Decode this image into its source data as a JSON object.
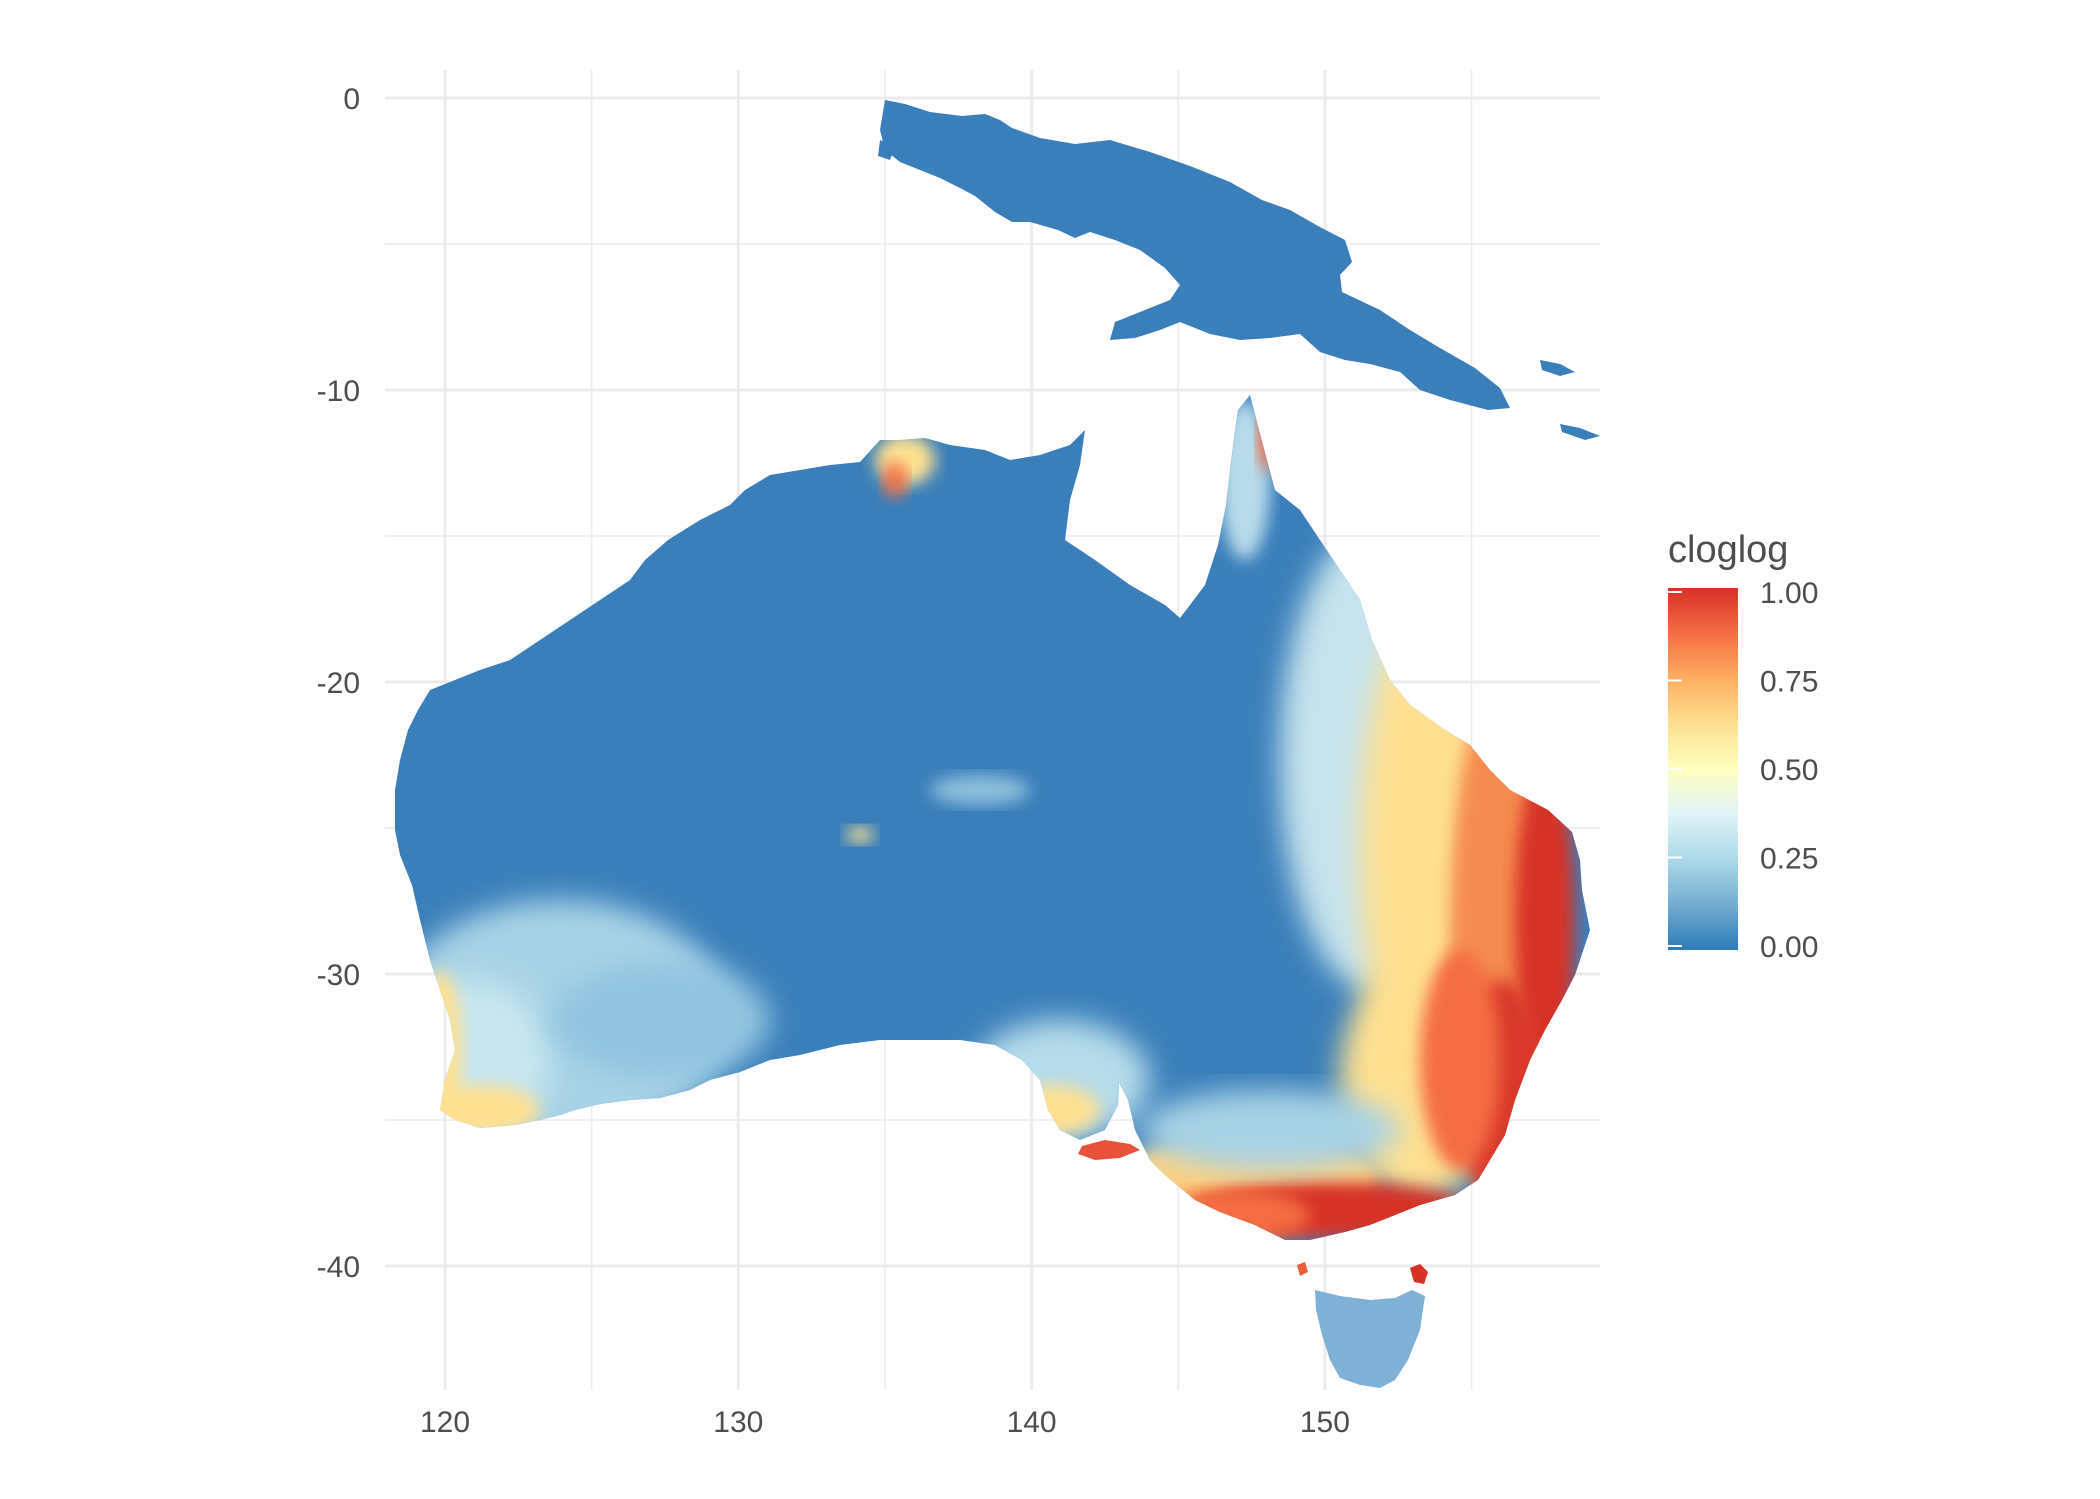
{
  "chart_data": {
    "type": "raster-map",
    "x_ticks": [
      "120",
      "130",
      "140",
      "150"
    ],
    "y_ticks": [
      "0",
      "-10",
      "-20",
      "-30",
      "-40"
    ],
    "xlim": [
      113,
      154.5
    ],
    "ylim": [
      -44,
      0.5
    ],
    "x_tick_values": [
      120,
      130,
      140,
      150
    ],
    "y_tick_values": [
      0,
      -10,
      -20,
      -30,
      -40
    ],
    "grid": true,
    "legend": {
      "title": "cloglog",
      "position": "right",
      "labels": [
        "1.00",
        "0.75",
        "0.50",
        "0.25",
        "0.00"
      ],
      "values": [
        1.0,
        0.75,
        0.5,
        0.25,
        0.0
      ],
      "colors": [
        "#d73027",
        "#f46d43",
        "#fdae61",
        "#fee090",
        "#ffffbf",
        "#e0f3f8",
        "#abd9e9",
        "#74add1",
        "#3a7fba"
      ]
    },
    "regions": [
      {
        "name": "New Guinea",
        "value": 0.03
      },
      {
        "name": "Australia mainland",
        "value": 0.05
      },
      {
        "name": "Tasmania",
        "value": 0.2
      }
    ]
  }
}
